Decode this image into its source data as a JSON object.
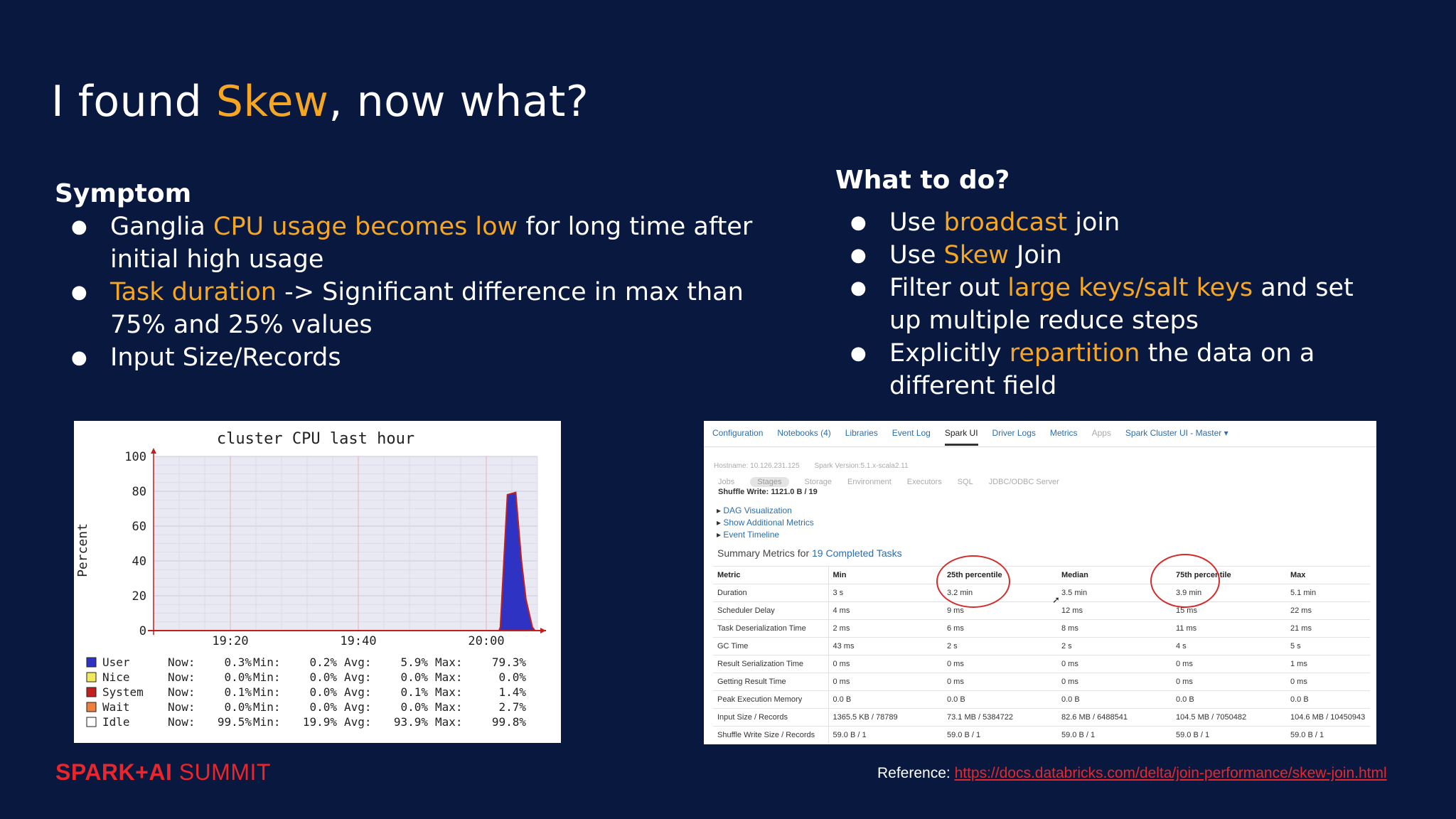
{
  "slide": {
    "title_pre": "I found ",
    "title_hl": "Skew",
    "title_post": ", now what?"
  },
  "symptom": {
    "heading": "Symptom",
    "bullets": [
      {
        "l1_pre": "Ganglia ",
        "l1_hl": "CPU usage becomes low",
        "l1_post": " for long time after",
        "l2": "initial high usage"
      },
      {
        "l1_hl": "Task duration",
        "l1_post": " -> Significant difference in max than",
        "l2": "75% and 25% values"
      },
      {
        "l1": "Input Size/Records"
      }
    ]
  },
  "todo": {
    "heading": "What to do?",
    "bullets": [
      {
        "pre": "Use ",
        "hl": "broadcast",
        "post": " join"
      },
      {
        "pre": "Use ",
        "hl": "Skew",
        "post": " Join"
      },
      {
        "pre": "Filter out ",
        "hl": "large keys/salt keys",
        "post": " and set",
        "l2": "up multiple reduce steps"
      },
      {
        "pre": "Explicitly ",
        "hl": "repartition",
        "post": " the data on a",
        "l2": "different field"
      }
    ]
  },
  "chart_data": {
    "type": "area",
    "title": "cluster CPU last hour",
    "ylabel": "Percent",
    "ylim": [
      0,
      100
    ],
    "yticks": [
      "0",
      "20",
      "40",
      "60",
      "80",
      "100"
    ],
    "xticks": [
      {
        "x": 20,
        "label": "19:20"
      },
      {
        "x": 40,
        "label": "19:40"
      },
      {
        "x": 60,
        "label": "20:00"
      }
    ],
    "xlim": [
      8,
      68
    ],
    "series": [
      {
        "name": "User",
        "color": "#2e33c4",
        "points": [
          [
            8,
            0
          ],
          [
            62,
            0
          ],
          [
            62.2,
            2
          ],
          [
            63.3,
            78
          ],
          [
            64.6,
            79.3
          ],
          [
            65.5,
            40
          ],
          [
            66.2,
            18
          ],
          [
            67.2,
            2
          ],
          [
            67.6,
            0
          ],
          [
            68,
            0
          ]
        ]
      }
    ],
    "legend": [
      {
        "name": "User",
        "color": "#2e33c4",
        "now": "0.3%",
        "min": "0.2%",
        "avg": "5.9%",
        "max": "79.3%"
      },
      {
        "name": "Nice",
        "color": "#f2e85c",
        "now": "0.0%",
        "min": "0.0%",
        "avg": "0.0%",
        "max": "0.0%"
      },
      {
        "name": "System",
        "color": "#c21f1f",
        "now": "0.1%",
        "min": "0.0%",
        "avg": "0.1%",
        "max": "1.4%"
      },
      {
        "name": "Wait",
        "color": "#f07f3c",
        "now": "0.0%",
        "min": "0.0%",
        "avg": "0.0%",
        "max": "2.7%"
      },
      {
        "name": "Idle",
        "color": "#ffffff",
        "now": "99.5%",
        "min": "19.9%",
        "avg": "93.9%",
        "max": "99.8%"
      }
    ],
    "legend_labels": {
      "now": "Now:",
      "min": "Min:",
      "avg": "Avg:",
      "max": "Max:"
    }
  },
  "spark_ui": {
    "tabs": [
      "Configuration",
      "Notebooks (4)",
      "Libraries",
      "Event Log",
      "Spark UI",
      "Driver Logs",
      "Metrics",
      "Apps",
      "Spark Cluster UI - Master ▾"
    ],
    "hostname": "Hostname: 10.126.231.125",
    "version": "Spark Version:5.1.x-scala2.11",
    "subtabs": [
      "Jobs",
      "Stages",
      "Storage",
      "Environment",
      "Executors",
      "SQL",
      "JDBC/ODBC Server"
    ],
    "clipped_line": "Shuffle Write: 1121.0 B / 19",
    "links": [
      "DAG Visualization",
      "Show Additional Metrics",
      "Event Timeline"
    ],
    "summary_pre": "Summary Metrics for ",
    "summary_link": "19 Completed Tasks",
    "table": {
      "headers": [
        "Metric",
        "Min",
        "25th percentile",
        "Median",
        "75th percentile",
        "Max"
      ],
      "rows": [
        [
          "Duration",
          "3 s",
          "3.2 min",
          "3.5 min",
          "3.9 min",
          "5.1 min"
        ],
        [
          "Scheduler Delay",
          "4 ms",
          "9 ms",
          "12 ms",
          "15 ms",
          "22 ms"
        ],
        [
          "Task Deserialization Time",
          "2 ms",
          "6 ms",
          "8 ms",
          "11 ms",
          "21 ms"
        ],
        [
          "GC Time",
          "43 ms",
          "2 s",
          "2 s",
          "4 s",
          "5 s"
        ],
        [
          "Result Serialization Time",
          "0 ms",
          "0 ms",
          "0 ms",
          "0 ms",
          "1 ms"
        ],
        [
          "Getting Result Time",
          "0 ms",
          "0 ms",
          "0 ms",
          "0 ms",
          "0 ms"
        ],
        [
          "Peak Execution Memory",
          "0.0 B",
          "0.0 B",
          "0.0 B",
          "0.0 B",
          "0.0 B"
        ],
        [
          "Input Size / Records",
          "1365.5 KB / 78789",
          "73.1 MB / 5384722",
          "82.6 MB / 6488541",
          "104.5 MB / 7050482",
          "104.6 MB / 10450943"
        ],
        [
          "Shuffle Write Size / Records",
          "59.0 B / 1",
          "59.0 B / 1",
          "59.0 B / 1",
          "59.0 B / 1",
          "59.0 B / 1"
        ]
      ]
    }
  },
  "footer": {
    "logo_a": "SPARK+AI",
    "logo_b": " SUMMIT",
    "reference_label": "Reference: ",
    "reference_url": "https://docs.databricks.com/delta/join-performance/skew-join.html"
  },
  "colors": {
    "background": "#08183f",
    "highlight": "#f5a623",
    "brand_red": "#e8262b"
  }
}
